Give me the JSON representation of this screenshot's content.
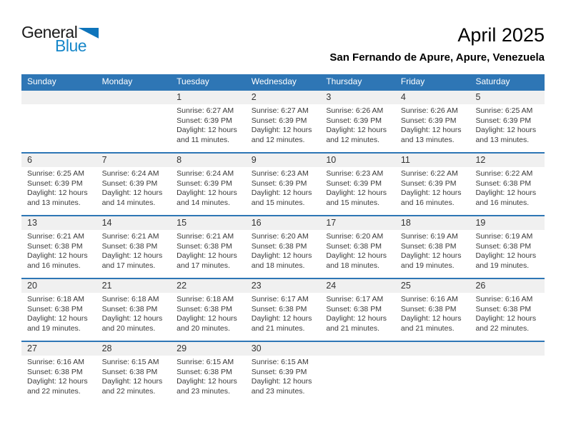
{
  "logo": {
    "general": "General",
    "blue": "Blue",
    "triangle_icon": "logo-triangle-icon"
  },
  "header": {
    "title": "April 2025",
    "location": "San Fernando de Apure, Apure, Venezuela"
  },
  "colors": {
    "header_bar_blue": "#2e76b5",
    "row_border_blue": "#2e76b5",
    "day_band_gray": "#f0f0f0",
    "logo_blue": "#1787c9",
    "logo_triangle_blue": "#0e74bb",
    "text_dark": "#333333"
  },
  "calendar": {
    "day_headers": [
      "Sunday",
      "Monday",
      "Tuesday",
      "Wednesday",
      "Thursday",
      "Friday",
      "Saturday"
    ],
    "weeks": [
      [
        {},
        {},
        {
          "day": "1",
          "sunrise": "Sunrise: 6:27 AM",
          "sunset": "Sunset: 6:39 PM",
          "daylight": "Daylight: 12 hours and 11 minutes."
        },
        {
          "day": "2",
          "sunrise": "Sunrise: 6:27 AM",
          "sunset": "Sunset: 6:39 PM",
          "daylight": "Daylight: 12 hours and 12 minutes."
        },
        {
          "day": "3",
          "sunrise": "Sunrise: 6:26 AM",
          "sunset": "Sunset: 6:39 PM",
          "daylight": "Daylight: 12 hours and 12 minutes."
        },
        {
          "day": "4",
          "sunrise": "Sunrise: 6:26 AM",
          "sunset": "Sunset: 6:39 PM",
          "daylight": "Daylight: 12 hours and 13 minutes."
        },
        {
          "day": "5",
          "sunrise": "Sunrise: 6:25 AM",
          "sunset": "Sunset: 6:39 PM",
          "daylight": "Daylight: 12 hours and 13 minutes."
        }
      ],
      [
        {
          "day": "6",
          "sunrise": "Sunrise: 6:25 AM",
          "sunset": "Sunset: 6:39 PM",
          "daylight": "Daylight: 12 hours and 13 minutes."
        },
        {
          "day": "7",
          "sunrise": "Sunrise: 6:24 AM",
          "sunset": "Sunset: 6:39 PM",
          "daylight": "Daylight: 12 hours and 14 minutes."
        },
        {
          "day": "8",
          "sunrise": "Sunrise: 6:24 AM",
          "sunset": "Sunset: 6:39 PM",
          "daylight": "Daylight: 12 hours and 14 minutes."
        },
        {
          "day": "9",
          "sunrise": "Sunrise: 6:23 AM",
          "sunset": "Sunset: 6:39 PM",
          "daylight": "Daylight: 12 hours and 15 minutes."
        },
        {
          "day": "10",
          "sunrise": "Sunrise: 6:23 AM",
          "sunset": "Sunset: 6:39 PM",
          "daylight": "Daylight: 12 hours and 15 minutes."
        },
        {
          "day": "11",
          "sunrise": "Sunrise: 6:22 AM",
          "sunset": "Sunset: 6:39 PM",
          "daylight": "Daylight: 12 hours and 16 minutes."
        },
        {
          "day": "12",
          "sunrise": "Sunrise: 6:22 AM",
          "sunset": "Sunset: 6:38 PM",
          "daylight": "Daylight: 12 hours and 16 minutes."
        }
      ],
      [
        {
          "day": "13",
          "sunrise": "Sunrise: 6:21 AM",
          "sunset": "Sunset: 6:38 PM",
          "daylight": "Daylight: 12 hours and 16 minutes."
        },
        {
          "day": "14",
          "sunrise": "Sunrise: 6:21 AM",
          "sunset": "Sunset: 6:38 PM",
          "daylight": "Daylight: 12 hours and 17 minutes."
        },
        {
          "day": "15",
          "sunrise": "Sunrise: 6:21 AM",
          "sunset": "Sunset: 6:38 PM",
          "daylight": "Daylight: 12 hours and 17 minutes."
        },
        {
          "day": "16",
          "sunrise": "Sunrise: 6:20 AM",
          "sunset": "Sunset: 6:38 PM",
          "daylight": "Daylight: 12 hours and 18 minutes."
        },
        {
          "day": "17",
          "sunrise": "Sunrise: 6:20 AM",
          "sunset": "Sunset: 6:38 PM",
          "daylight": "Daylight: 12 hours and 18 minutes."
        },
        {
          "day": "18",
          "sunrise": "Sunrise: 6:19 AM",
          "sunset": "Sunset: 6:38 PM",
          "daylight": "Daylight: 12 hours and 19 minutes."
        },
        {
          "day": "19",
          "sunrise": "Sunrise: 6:19 AM",
          "sunset": "Sunset: 6:38 PM",
          "daylight": "Daylight: 12 hours and 19 minutes."
        }
      ],
      [
        {
          "day": "20",
          "sunrise": "Sunrise: 6:18 AM",
          "sunset": "Sunset: 6:38 PM",
          "daylight": "Daylight: 12 hours and 19 minutes."
        },
        {
          "day": "21",
          "sunrise": "Sunrise: 6:18 AM",
          "sunset": "Sunset: 6:38 PM",
          "daylight": "Daylight: 12 hours and 20 minutes."
        },
        {
          "day": "22",
          "sunrise": "Sunrise: 6:18 AM",
          "sunset": "Sunset: 6:38 PM",
          "daylight": "Daylight: 12 hours and 20 minutes."
        },
        {
          "day": "23",
          "sunrise": "Sunrise: 6:17 AM",
          "sunset": "Sunset: 6:38 PM",
          "daylight": "Daylight: 12 hours and 21 minutes."
        },
        {
          "day": "24",
          "sunrise": "Sunrise: 6:17 AM",
          "sunset": "Sunset: 6:38 PM",
          "daylight": "Daylight: 12 hours and 21 minutes."
        },
        {
          "day": "25",
          "sunrise": "Sunrise: 6:16 AM",
          "sunset": "Sunset: 6:38 PM",
          "daylight": "Daylight: 12 hours and 21 minutes."
        },
        {
          "day": "26",
          "sunrise": "Sunrise: 6:16 AM",
          "sunset": "Sunset: 6:38 PM",
          "daylight": "Daylight: 12 hours and 22 minutes."
        }
      ],
      [
        {
          "day": "27",
          "sunrise": "Sunrise: 6:16 AM",
          "sunset": "Sunset: 6:38 PM",
          "daylight": "Daylight: 12 hours and 22 minutes."
        },
        {
          "day": "28",
          "sunrise": "Sunrise: 6:15 AM",
          "sunset": "Sunset: 6:38 PM",
          "daylight": "Daylight: 12 hours and 22 minutes."
        },
        {
          "day": "29",
          "sunrise": "Sunrise: 6:15 AM",
          "sunset": "Sunset: 6:38 PM",
          "daylight": "Daylight: 12 hours and 23 minutes."
        },
        {
          "day": "30",
          "sunrise": "Sunrise: 6:15 AM",
          "sunset": "Sunset: 6:39 PM",
          "daylight": "Daylight: 12 hours and 23 minutes."
        },
        {},
        {},
        {}
      ]
    ]
  }
}
